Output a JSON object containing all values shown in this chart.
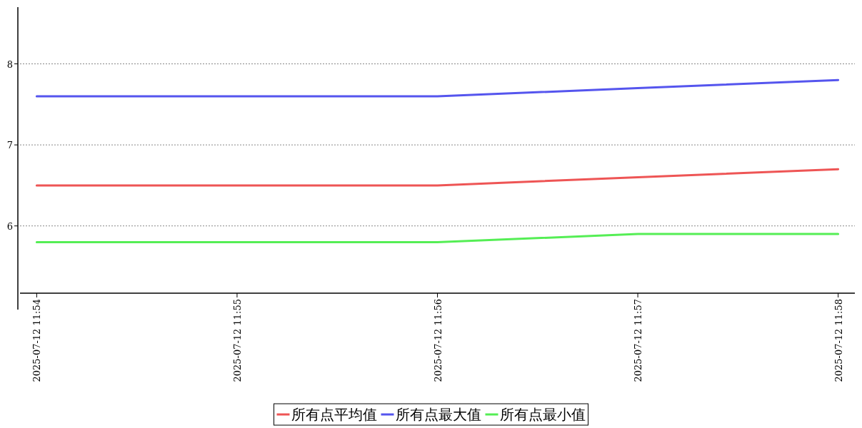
{
  "chart_data": {
    "type": "line",
    "x": [
      "2025-07-12T11:54",
      "2025-07-12T11:55",
      "2025-07-12T11:56",
      "2025-07-12T11:57",
      "2025-07-12T11:58"
    ],
    "series": [
      {
        "name": "所有点平均值",
        "color": "#ee5555",
        "values": [
          6.5,
          6.5,
          6.5,
          6.6,
          6.7
        ]
      },
      {
        "name": "所有点最大值",
        "color": "#5555ee",
        "values": [
          7.6,
          7.6,
          7.6,
          7.7,
          7.8
        ]
      },
      {
        "name": "所有点最小值",
        "color": "#55ee55",
        "values": [
          5.8,
          5.8,
          5.8,
          5.9,
          5.9
        ]
      }
    ],
    "xlim": [
      "2025-07-12T11:53:55",
      "2025-07-12T11:58:05"
    ],
    "xticks": [
      {
        "value": "2025-07-12T11:54",
        "label": "2025-07-12 11:54"
      },
      {
        "value": "2025-07-12T11:55",
        "label": "2025-07-12 11:55"
      },
      {
        "value": "2025-07-12T11:56",
        "label": "2025-07-12 11:56"
      },
      {
        "value": "2025-07-12T11:57",
        "label": "2025-07-12 11:57"
      },
      {
        "value": "2025-07-12T11:58",
        "label": "2025-07-12 11:58"
      }
    ],
    "ylim": [
      5.17,
      8.7
    ],
    "yticks": [
      6,
      7,
      8
    ],
    "grid": "y",
    "legend": "bottom",
    "marker": "none",
    "line_style": "solid"
  }
}
